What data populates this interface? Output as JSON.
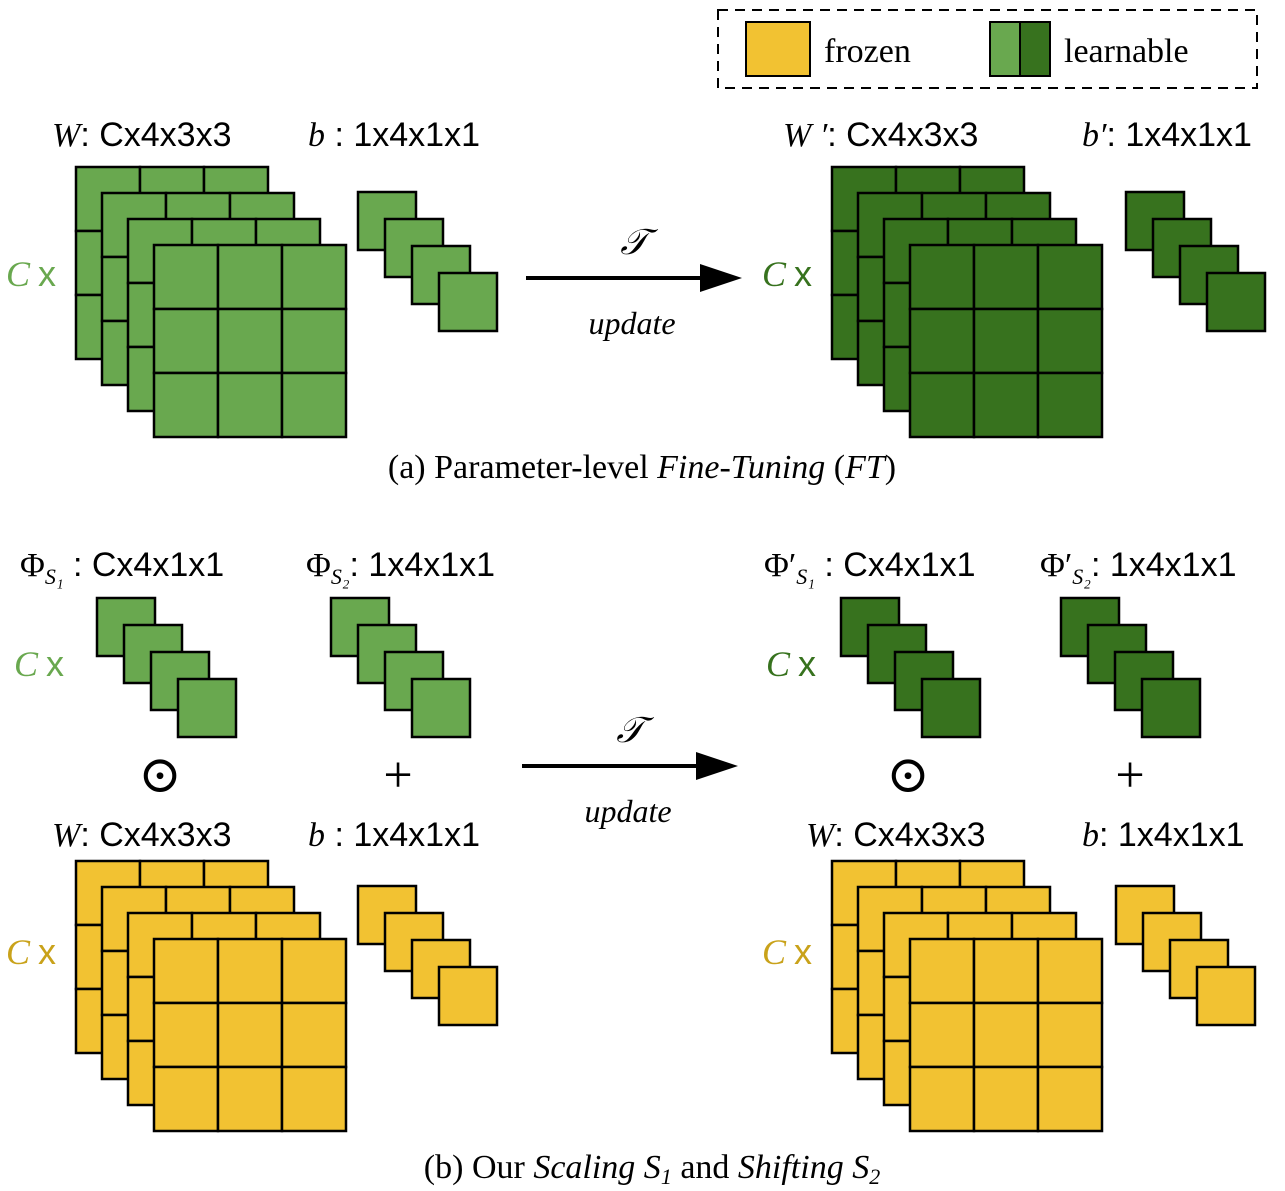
{
  "colors": {
    "frozen": "#f2c232",
    "learnable_light": "#69a84f",
    "learnable_dark": "#37721e",
    "edge": "#000000",
    "c_label_green": "#69a84f",
    "c_label_dark": "#37721e",
    "c_label_gold": "#c9a21a"
  },
  "legend": {
    "frozen_label": "frozen",
    "learnable_label": "learnable"
  },
  "arrow": {
    "symbol": "𝒯",
    "label": "update"
  },
  "cx": {
    "c": "C",
    "x": "x"
  },
  "panel_a": {
    "left": {
      "weight_symbol": "W",
      "weight_shape": ": Cx4x3x3",
      "bias_symbol": "b",
      "bias_shape": " : 1x4x1x1"
    },
    "right": {
      "weight_symbol": "W ′",
      "weight_shape": ": Cx4x3x3",
      "bias_symbol": "b′",
      "bias_shape": ": 1x4x1x1"
    },
    "caption": {
      "prefix": "(a) Parameter-level ",
      "italic": "Fine-Tuning",
      "middle": " (",
      "italic2": "FT",
      "suffix": ")"
    }
  },
  "panel_b": {
    "left": {
      "scale_symbol": "Φ",
      "scale_sub": "S₁",
      "scale_shape": " : Cx4x1x1",
      "shift_symbol": "Φ",
      "shift_sub": "S₂",
      "shift_shape": ": 1x4x1x1",
      "op_scale": "⊙",
      "op_shift": "+",
      "weight_symbol": "W",
      "weight_shape": ": Cx4x3x3",
      "bias_symbol": "b",
      "bias_shape": " : 1x4x1x1"
    },
    "right": {
      "scale_symbol": "Φ′",
      "scale_sub": "S₁",
      "scale_shape": " : Cx4x1x1",
      "shift_symbol": "Φ′",
      "shift_sub": "S₂",
      "shift_shape": ": 1x4x1x1",
      "op_scale": "⊙",
      "op_shift": "+",
      "weight_symbol": "W",
      "weight_shape": ": Cx4x3x3",
      "bias_symbol": "b",
      "bias_shape": ": 1x4x1x1"
    },
    "caption": {
      "prefix": "(b) Our ",
      "italic1": "Scaling S",
      "sub1": "1",
      "middle": " and ",
      "italic2": "Shifting S",
      "sub2": "2"
    }
  }
}
